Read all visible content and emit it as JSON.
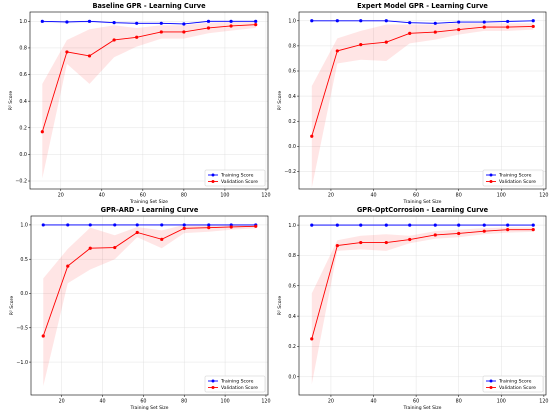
{
  "chart_data": [
    {
      "type": "line",
      "title": "Baseline GPR - Learning Curve",
      "xlabel": "Training Set Size",
      "ylabel": "R² Score",
      "xlim": [
        5,
        121
      ],
      "ylim": [
        -0.26,
        1.07
      ],
      "xticks": [
        20,
        40,
        60,
        80,
        100,
        120
      ],
      "yticks": [
        -0.2,
        0.0,
        0.2,
        0.4,
        0.6,
        0.8,
        1.0
      ],
      "ytick_labels": [
        "−0.2",
        "0.0",
        "0.2",
        "0.4",
        "0.6",
        "0.8",
        "1.0"
      ],
      "grid": true,
      "legend": "bottom-right",
      "x": [
        11,
        23,
        34,
        46,
        57,
        69,
        80,
        92,
        103,
        115
      ],
      "series": [
        {
          "name": "Training Score",
          "color": "#0000ff",
          "values": [
            1.0,
            0.995,
            1.0,
            0.99,
            0.985,
            0.985,
            0.98,
            1.0,
            1.0,
            1.0
          ],
          "band_low": [
            0.99,
            0.985,
            0.99,
            0.985,
            0.98,
            0.98,
            0.975,
            0.995,
            0.995,
            0.995
          ],
          "band_high": [
            1.0,
            1.0,
            1.005,
            0.995,
            0.99,
            0.99,
            0.985,
            1.005,
            1.005,
            1.005
          ]
        },
        {
          "name": "Validation Score",
          "color": "#ff0000",
          "values": [
            0.17,
            0.77,
            0.74,
            0.86,
            0.88,
            0.92,
            0.92,
            0.95,
            0.965,
            0.975
          ],
          "band_low": [
            -0.18,
            0.68,
            0.53,
            0.73,
            0.81,
            0.87,
            0.87,
            0.91,
            0.93,
            0.95
          ],
          "band_high": [
            0.53,
            0.86,
            0.94,
            0.97,
            0.95,
            0.97,
            0.97,
            0.99,
            0.995,
            0.995
          ]
        }
      ]
    },
    {
      "type": "line",
      "title": "Expert Model GPR - Learning Curve",
      "xlabel": "Training Set Size",
      "ylabel": "R² Score",
      "xlim": [
        5,
        121
      ],
      "ylim": [
        -0.34,
        1.07
      ],
      "xticks": [
        20,
        40,
        60,
        80,
        100,
        120
      ],
      "yticks": [
        -0.2,
        0.0,
        0.2,
        0.4,
        0.6,
        0.8,
        1.0
      ],
      "ytick_labels": [
        "−0.2",
        "0.0",
        "0.2",
        "0.4",
        "0.6",
        "0.8",
        "1.0"
      ],
      "grid": true,
      "legend": "bottom-right",
      "x": [
        11,
        23,
        34,
        46,
        57,
        69,
        80,
        92,
        103,
        115
      ],
      "series": [
        {
          "name": "Training Score",
          "color": "#0000ff",
          "values": [
            1.0,
            1.0,
            1.0,
            1.0,
            0.985,
            0.98,
            0.99,
            0.99,
            0.995,
            1.0
          ],
          "band_low": [
            0.995,
            0.995,
            0.995,
            0.995,
            0.98,
            0.975,
            0.985,
            0.985,
            0.99,
            0.995
          ],
          "band_high": [
            1.005,
            1.005,
            1.005,
            1.005,
            0.99,
            0.985,
            0.995,
            0.995,
            1.0,
            1.005
          ]
        },
        {
          "name": "Validation Score",
          "color": "#ff0000",
          "values": [
            0.08,
            0.76,
            0.81,
            0.83,
            0.9,
            0.91,
            0.93,
            0.95,
            0.95,
            0.955
          ],
          "band_low": [
            -0.33,
            0.66,
            0.69,
            0.68,
            0.82,
            0.85,
            0.89,
            0.92,
            0.92,
            0.93
          ],
          "band_high": [
            0.48,
            0.86,
            0.92,
            0.97,
            0.97,
            0.97,
            0.98,
            0.98,
            0.98,
            0.98
          ]
        }
      ]
    },
    {
      "type": "line",
      "title": "GPR-ARD - Learning Curve",
      "xlabel": "Training Set Size",
      "ylabel": "R² Score",
      "xlim": [
        5,
        121
      ],
      "ylim": [
        -1.48,
        1.13
      ],
      "xticks": [
        20,
        40,
        60,
        80,
        100,
        120
      ],
      "yticks": [
        -1.0,
        -0.5,
        0.0,
        0.5,
        1.0
      ],
      "ytick_labels": [
        "−1.0",
        "−0.5",
        "0.0",
        "0.5",
        "1.0"
      ],
      "grid": true,
      "legend": "bottom-right",
      "x": [
        11,
        23,
        34,
        46,
        57,
        69,
        80,
        92,
        103,
        115
      ],
      "series": [
        {
          "name": "Training Score",
          "color": "#0000ff",
          "values": [
            1.0,
            1.0,
            1.0,
            1.0,
            1.0,
            1.0,
            1.0,
            1.0,
            1.0,
            1.0
          ],
          "band_low": [
            0.99,
            0.99,
            0.99,
            0.99,
            0.99,
            0.99,
            0.99,
            0.99,
            0.99,
            0.99
          ],
          "band_high": [
            1.01,
            1.01,
            1.01,
            1.01,
            1.01,
            1.01,
            1.01,
            1.01,
            1.01,
            1.01
          ]
        },
        {
          "name": "Validation Score",
          "color": "#ff0000",
          "values": [
            -0.62,
            0.4,
            0.66,
            0.67,
            0.89,
            0.79,
            0.95,
            0.96,
            0.97,
            0.98
          ],
          "band_low": [
            -1.35,
            0.15,
            0.35,
            0.5,
            0.82,
            0.66,
            0.88,
            0.9,
            0.93,
            0.95
          ],
          "band_high": [
            0.22,
            0.65,
            0.96,
            0.85,
            0.97,
            0.92,
            1.0,
            1.0,
            1.0,
            1.0
          ]
        }
      ]
    },
    {
      "type": "line",
      "title": "GPR-OptCorrosion - Learning Curve",
      "xlabel": "Training Set Size",
      "ylabel": "R² Score",
      "xlim": [
        5,
        121
      ],
      "ylim": [
        -0.12,
        1.06
      ],
      "xticks": [
        20,
        40,
        60,
        80,
        100,
        120
      ],
      "yticks": [
        0.0,
        0.2,
        0.4,
        0.6,
        0.8,
        1.0
      ],
      "ytick_labels": [
        "0.0",
        "0.2",
        "0.4",
        "0.6",
        "0.8",
        "1.0"
      ],
      "grid": true,
      "legend": "bottom-right",
      "x": [
        11,
        23,
        34,
        46,
        57,
        69,
        80,
        92,
        103,
        115
      ],
      "series": [
        {
          "name": "Training Score",
          "color": "#0000ff",
          "values": [
            1.0,
            1.0,
            1.0,
            1.0,
            1.0,
            1.0,
            1.0,
            1.0,
            1.0,
            1.0
          ],
          "band_low": [
            0.995,
            0.995,
            0.995,
            0.995,
            0.995,
            0.995,
            0.995,
            0.995,
            0.995,
            0.995
          ],
          "band_high": [
            1.005,
            1.005,
            1.005,
            1.005,
            1.005,
            1.005,
            1.005,
            1.005,
            1.005,
            1.005
          ]
        },
        {
          "name": "Validation Score",
          "color": "#ff0000",
          "values": [
            0.25,
            0.865,
            0.885,
            0.885,
            0.905,
            0.935,
            0.945,
            0.96,
            0.97,
            0.97
          ],
          "band_low": [
            -0.05,
            0.83,
            0.84,
            0.83,
            0.88,
            0.91,
            0.92,
            0.94,
            0.95,
            0.955
          ],
          "band_high": [
            0.55,
            0.9,
            0.93,
            0.94,
            0.93,
            0.96,
            0.97,
            0.98,
            0.985,
            0.985
          ]
        }
      ]
    }
  ]
}
